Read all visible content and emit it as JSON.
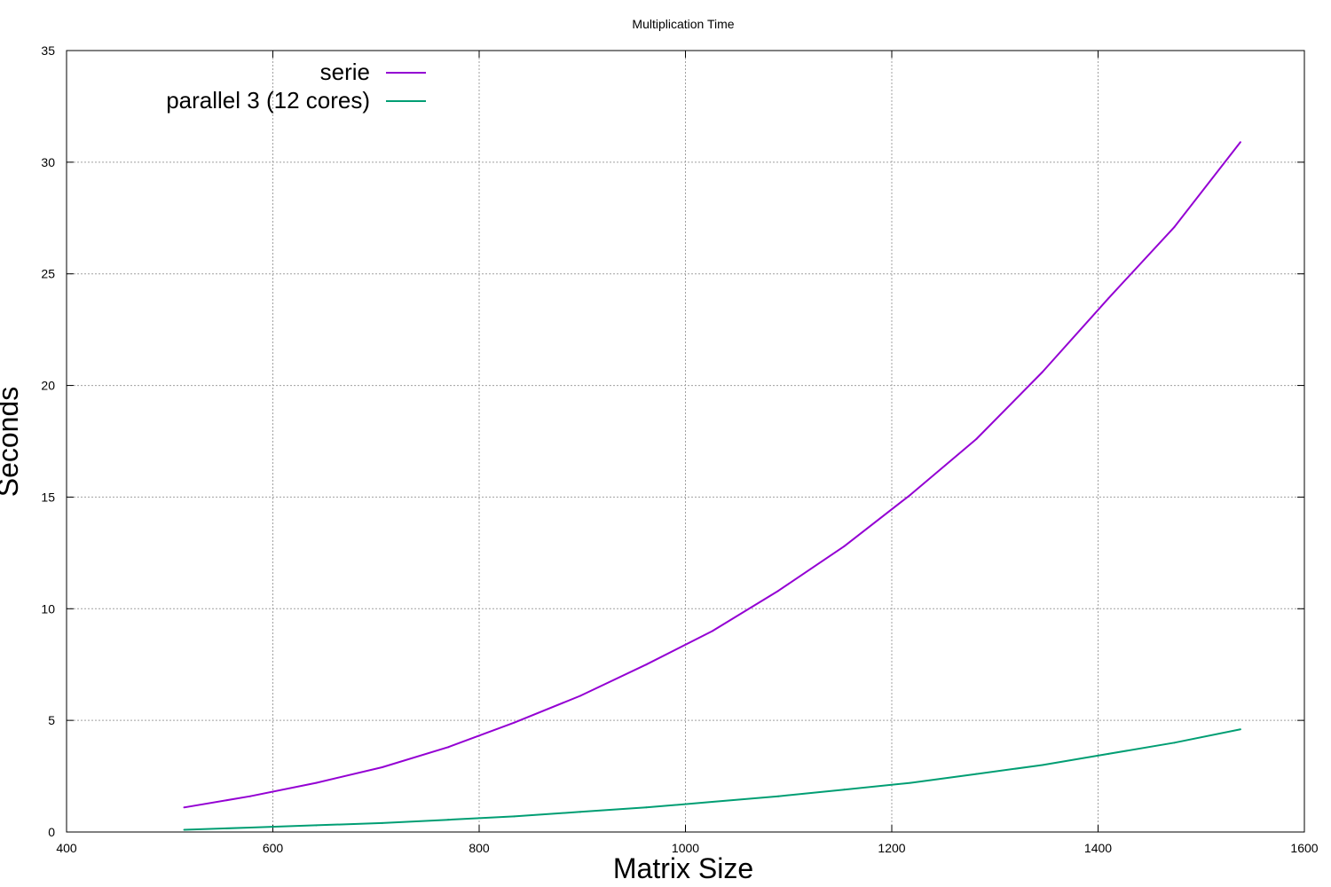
{
  "chart_data": {
    "type": "line",
    "title": "Multiplication Time",
    "xlabel": "Matrix Size",
    "ylabel": "Seconds",
    "xlim": [
      400,
      1600
    ],
    "ylim": [
      0,
      35
    ],
    "xticks": [
      400,
      600,
      800,
      1000,
      1200,
      1400,
      1600
    ],
    "yticks": [
      0,
      5,
      10,
      15,
      20,
      25,
      30,
      35
    ],
    "grid": true,
    "legend_position": "top-left",
    "series": [
      {
        "name": "serie",
        "color": "#9400d3",
        "x": [
          514,
          578,
          642,
          706,
          770,
          834,
          898,
          962,
          1026,
          1090,
          1154,
          1218,
          1282,
          1346,
          1410,
          1474,
          1538
        ],
        "y": [
          1.1,
          1.6,
          2.2,
          2.9,
          3.8,
          4.9,
          6.1,
          7.5,
          9.0,
          10.8,
          12.8,
          15.1,
          17.6,
          20.6,
          23.9,
          27.1,
          30.9
        ]
      },
      {
        "name": "parallel 3 (12 cores)",
        "color": "#009e73",
        "x": [
          514,
          578,
          642,
          706,
          770,
          834,
          898,
          962,
          1026,
          1090,
          1154,
          1218,
          1282,
          1346,
          1410,
          1474,
          1538
        ],
        "y": [
          0.1,
          0.2,
          0.3,
          0.4,
          0.55,
          0.7,
          0.9,
          1.1,
          1.35,
          1.6,
          1.9,
          2.2,
          2.6,
          3.0,
          3.5,
          4.0,
          4.6
        ]
      }
    ]
  }
}
